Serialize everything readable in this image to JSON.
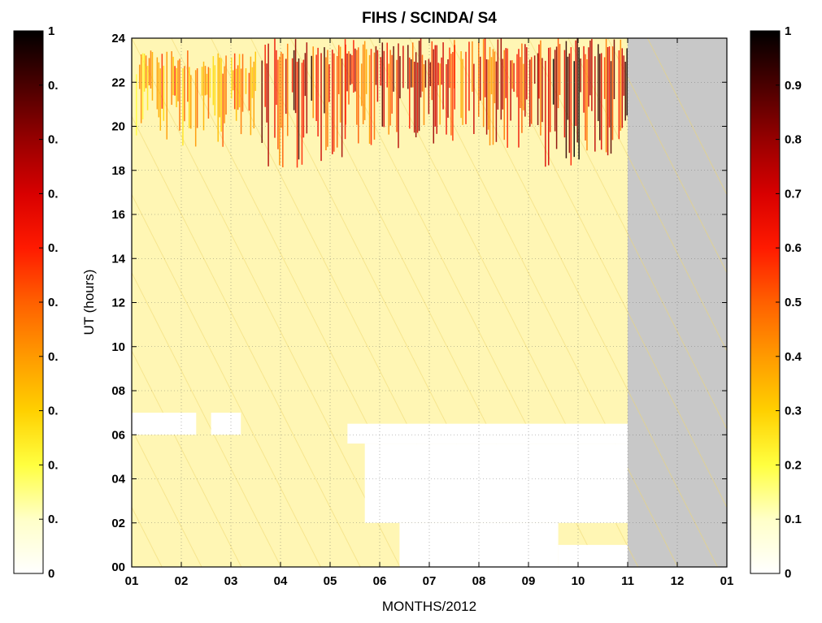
{
  "chart_data": {
    "type": "heatmap",
    "title": "FIHS / SCINDA/ S4",
    "xlabel": "MONTHS/2012",
    "ylabel": "UT (hours)",
    "x_ticks": [
      "01",
      "02",
      "03",
      "04",
      "05",
      "06",
      "07",
      "08",
      "09",
      "10",
      "11",
      "12",
      "01"
    ],
    "y_ticks": [
      "00",
      "02",
      "04",
      "06",
      "08",
      "10",
      "12",
      "14",
      "16",
      "18",
      "20",
      "22",
      "24"
    ],
    "xlim": [
      1,
      13
    ],
    "ylim": [
      0,
      24
    ],
    "grid": true,
    "colorbar_left": {
      "ticks": [
        "1",
        "0.",
        "0.",
        "0.",
        "0.",
        "0.",
        "0.",
        "0.",
        "0.",
        "0.",
        "0"
      ],
      "range": [
        0,
        1
      ]
    },
    "colorbar_right": {
      "ticks": [
        "1",
        "0.9",
        "0.8",
        "0.7",
        "0.6",
        "0.5",
        "0.4",
        "0.3",
        "0.2",
        "0.1",
        "0"
      ],
      "range": [
        0,
        1
      ]
    },
    "colormap": [
      "#ffffff",
      "#ffffc8",
      "#ffff40",
      "#ffd000",
      "#ff9a00",
      "#ff6000",
      "#ff1a00",
      "#d80000",
      "#960000",
      "#4a0000",
      "#000000"
    ],
    "background_value_color": "#fff6b4",
    "no_data_color": "#c8c8c8",
    "data_coverage_end_month": 11,
    "scintillation_patches": [
      {
        "month_start": 1.05,
        "month_end": 1.6,
        "ut_start": 19.5,
        "ut_end": 23.5,
        "s4": 0.4
      },
      {
        "month_start": 1.6,
        "month_end": 2.9,
        "ut_start": 19.0,
        "ut_end": 23.5,
        "s4": 0.5
      },
      {
        "month_start": 3.0,
        "month_end": 3.5,
        "ut_start": 19.5,
        "ut_end": 23.5,
        "s4": 0.5
      },
      {
        "month_start": 3.55,
        "month_end": 5.3,
        "ut_start": 18.0,
        "ut_end": 24.0,
        "s4": 0.8
      },
      {
        "month_start": 5.3,
        "month_end": 7.5,
        "ut_start": 19.0,
        "ut_end": 24.0,
        "s4": 0.75
      },
      {
        "month_start": 7.5,
        "month_end": 9.2,
        "ut_start": 19.0,
        "ut_end": 24.0,
        "s4": 0.7
      },
      {
        "month_start": 9.2,
        "month_end": 11.0,
        "ut_start": 18.0,
        "ut_end": 24.0,
        "s4": 0.85
      }
    ],
    "data_gaps": [
      {
        "month_start": 1.0,
        "month_end": 2.3,
        "ut_start": 6.0,
        "ut_end": 7.0
      },
      {
        "month_start": 2.6,
        "month_end": 3.2,
        "ut_start": 6.0,
        "ut_end": 7.0
      },
      {
        "month_start": 5.35,
        "month_end": 11.0,
        "ut_start": 5.6,
        "ut_end": 6.5
      },
      {
        "month_start": 5.7,
        "month_end": 11.0,
        "ut_start": 2.0,
        "ut_end": 5.6
      },
      {
        "month_start": 6.4,
        "month_end": 9.6,
        "ut_start": 0.0,
        "ut_end": 2.0
      },
      {
        "month_start": 9.6,
        "month_end": 11.0,
        "ut_start": 0.0,
        "ut_end": 1.0
      }
    ]
  }
}
